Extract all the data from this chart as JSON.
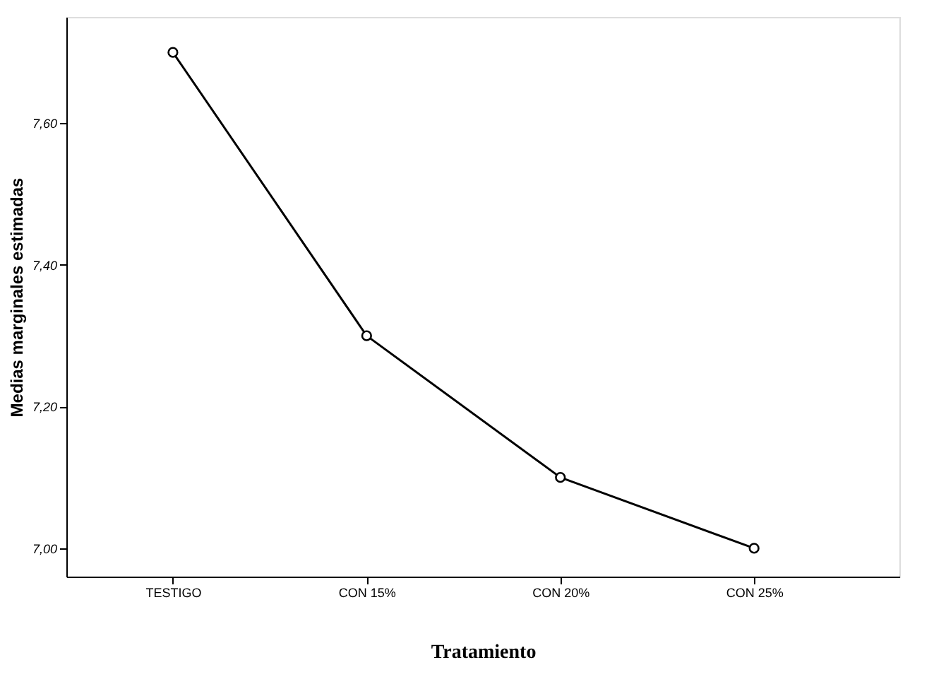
{
  "chart_data": {
    "type": "line",
    "xlabel": "Tratamiento",
    "ylabel": "Medias marginales estimadas",
    "categories": [
      "TESTIGO",
      "CON 15%",
      "CON 20%",
      "CON 25%"
    ],
    "series": [
      {
        "color": "#000000",
        "values": [
          7.7,
          7.3,
          7.1,
          7.0
        ]
      }
    ],
    "ylim": [
      6.96,
      7.75
    ],
    "yticks": [
      {
        "value": 7.0,
        "label": "7,00"
      },
      {
        "value": 7.2,
        "label": "7,20"
      },
      {
        "value": 7.4,
        "label": "7,40"
      },
      {
        "value": 7.6,
        "label": "7,60"
      }
    ],
    "marker": "circle",
    "line_style": "solid",
    "grid": false,
    "legend": false
  }
}
